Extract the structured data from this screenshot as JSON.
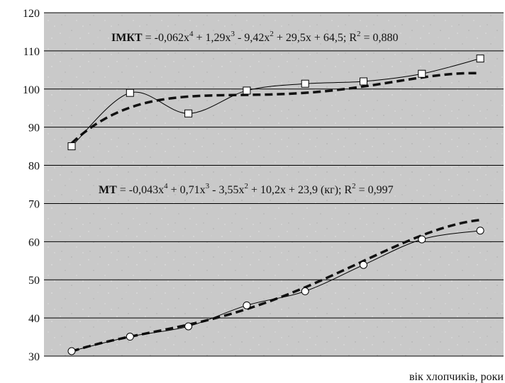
{
  "chart_data": {
    "type": "line",
    "xlabel": "вік хлопчиків, роки",
    "ylabel": "",
    "ylim": [
      30,
      120
    ],
    "yticks": [
      30,
      40,
      50,
      60,
      70,
      80,
      90,
      100,
      110,
      120
    ],
    "x": [
      1,
      2,
      3,
      4,
      5,
      6,
      7,
      8
    ],
    "grid": "horizontal",
    "background": "#c8c8c8",
    "series": [
      {
        "name": "ІМКТ",
        "marker": "square",
        "values": [
          85,
          99,
          93.6,
          99.6,
          101.4,
          102,
          104,
          108
        ]
      },
      {
        "name": "МТ",
        "marker": "circle",
        "values": [
          31.3,
          35.1,
          37.8,
          43.3,
          47,
          53.9,
          60.6,
          62.9
        ]
      }
    ],
    "trendlines": [
      {
        "series": "ІМКТ",
        "coefficients": [
          -0.062,
          1.29,
          -9.42,
          29.5,
          64.5
        ],
        "r2": 0.88
      },
      {
        "series": "МТ",
        "coefficients": [
          -0.043,
          0.71,
          -3.55,
          10.2,
          23.9
        ],
        "r2": 0.997
      }
    ],
    "annotations": {
      "imkt": {
        "name": "ІМКТ",
        "rest": " = -0,062x",
        "e4": "4",
        "t1": " + 1,29x",
        "e3": "3",
        "t2": " - 9,42x",
        "e2": "2",
        "t3": " + 29,5x + 64,5; R",
        "r": "2",
        "t4": " = 0,880"
      },
      "mt": {
        "name": "МТ",
        "rest": " = -0,043x",
        "e4": "4",
        "t1": " + 0,71x",
        "e3": "3",
        "t2": " - 3,55x",
        "e2": "2",
        "t3": " + 10,2x + 23,9 (кг); R",
        "r": "2",
        "t4": " = 0,997"
      }
    }
  }
}
